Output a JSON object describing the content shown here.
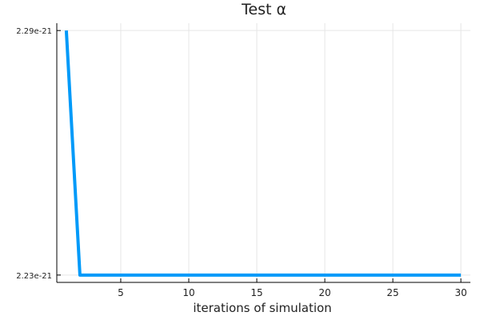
{
  "chart_data": {
    "type": "line",
    "title": "Test  α",
    "xlabel": "iterations of simulation",
    "ylabel": "",
    "xlim": [
      0.3,
      30.7
    ],
    "ylim": [
      2.2282e-21,
      2.2918e-21
    ],
    "x_ticks": [
      5,
      10,
      15,
      20,
      25,
      30
    ],
    "y_ticks": [
      {
        "value": 2.23e-21,
        "label": "2.23e-21"
      },
      {
        "value": 2.29e-21,
        "label": "2.29e-21"
      }
    ],
    "grid": true,
    "legend": "none",
    "series": [
      {
        "color": "#009AF9",
        "x": [
          1,
          2,
          3,
          4,
          5,
          6,
          7,
          8,
          9,
          10,
          11,
          12,
          13,
          14,
          15,
          16,
          17,
          18,
          19,
          20,
          21,
          22,
          23,
          24,
          25,
          26,
          27,
          28,
          29,
          30
        ],
        "y": [
          2.29e-21,
          2.23e-21,
          2.23e-21,
          2.23e-21,
          2.23e-21,
          2.23e-21,
          2.23e-21,
          2.23e-21,
          2.23e-21,
          2.23e-21,
          2.23e-21,
          2.23e-21,
          2.23e-21,
          2.23e-21,
          2.23e-21,
          2.23e-21,
          2.23e-21,
          2.23e-21,
          2.23e-21,
          2.23e-21,
          2.23e-21,
          2.23e-21,
          2.23e-21,
          2.23e-21,
          2.23e-21,
          2.23e-21,
          2.23e-21,
          2.23e-21,
          2.23e-21,
          2.23e-21
        ]
      }
    ]
  }
}
